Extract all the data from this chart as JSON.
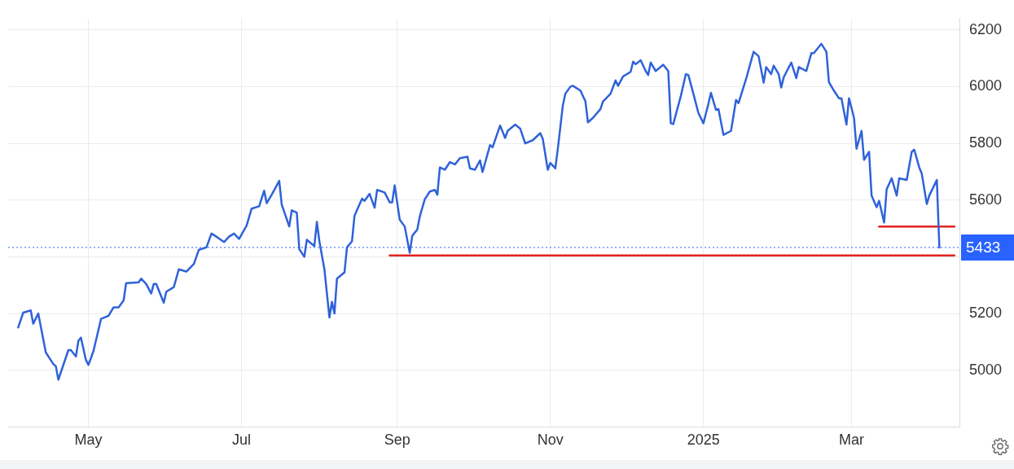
{
  "chart_data": {
    "type": "line",
    "xlim": [
      "2024-03-30",
      "2025-04-13"
    ],
    "xticks": [
      {
        "value": "2024-05-01",
        "label": "May"
      },
      {
        "value": "2024-07-01",
        "label": "Jul"
      },
      {
        "value": "2024-09-01",
        "label": "Sep"
      },
      {
        "value": "2024-11-01",
        "label": "Nov"
      },
      {
        "value": "2025-01-01",
        "label": "2025"
      },
      {
        "value": "2025-03-01",
        "label": "Mar"
      }
    ],
    "ylim": [
      4800,
      6240
    ],
    "yticks": [
      5000,
      5200,
      {
        "value": 5400,
        "label": null
      },
      5600,
      5800,
      6000,
      6200
    ],
    "grid": true,
    "marker": "none",
    "legend": false,
    "x": [
      "2024-04-03",
      "2024-04-05",
      "2024-04-08",
      "2024-04-09",
      "2024-04-11",
      "2024-04-14",
      "2024-04-15",
      "2024-04-17",
      "2024-04-18",
      "2024-04-19",
      "2024-04-23",
      "2024-04-24",
      "2024-04-26",
      "2024-04-27",
      "2024-04-28",
      "2024-04-30",
      "2024-05-01",
      "2024-05-03",
      "2024-05-06",
      "2024-05-09",
      "2024-05-11",
      "2024-05-13",
      "2024-05-15",
      "2024-05-16",
      "2024-05-21",
      "2024-05-22",
      "2024-05-24",
      "2024-05-26",
      "2024-05-27",
      "2024-05-28",
      "2024-05-31",
      "2024-06-01",
      "2024-06-04",
      "2024-06-06",
      "2024-06-09",
      "2024-06-12",
      "2024-06-14",
      "2024-06-17",
      "2024-06-19",
      "2024-06-21",
      "2024-06-24",
      "2024-06-26",
      "2024-06-28",
      "2024-06-30",
      "2024-07-03",
      "2024-07-05",
      "2024-07-08",
      "2024-07-10",
      "2024-07-11",
      "2024-07-13",
      "2024-07-16",
      "2024-07-17",
      "2024-07-20",
      "2024-07-21",
      "2024-07-23",
      "2024-07-24",
      "2024-07-26",
      "2024-07-27",
      "2024-07-30",
      "2024-07-31",
      "2024-08-01",
      "2024-08-03",
      "2024-08-05",
      "2024-08-06",
      "2024-08-07",
      "2024-08-08",
      "2024-08-11",
      "2024-08-12",
      "2024-08-14",
      "2024-08-15",
      "2024-08-18",
      "2024-08-19",
      "2024-08-21",
      "2024-08-23",
      "2024-08-24",
      "2024-08-27",
      "2024-08-29",
      "2024-08-30",
      "2024-08-31",
      "2024-09-02",
      "2024-09-04",
      "2024-09-06",
      "2024-09-07",
      "2024-09-09",
      "2024-09-10",
      "2024-09-12",
      "2024-09-14",
      "2024-09-16",
      "2024-09-17",
      "2024-09-18",
      "2024-09-20",
      "2024-09-22",
      "2024-09-24",
      "2024-09-26",
      "2024-09-29",
      "2024-09-30",
      "2024-10-02",
      "2024-10-04",
      "2024-10-05",
      "2024-10-08",
      "2024-10-09",
      "2024-10-12",
      "2024-10-14",
      "2024-10-15",
      "2024-10-18",
      "2024-10-20",
      "2024-10-22",
      "2024-10-25",
      "2024-10-28",
      "2024-10-29",
      "2024-10-31",
      "2024-11-01",
      "2024-11-03",
      "2024-11-04",
      "2024-11-06",
      "2024-11-07",
      "2024-11-09",
      "2024-11-10",
      "2024-11-13",
      "2024-11-15",
      "2024-11-16",
      "2024-11-18",
      "2024-11-21",
      "2024-11-22",
      "2024-11-25",
      "2024-11-27",
      "2024-11-28",
      "2024-11-30",
      "2024-12-03",
      "2024-12-04",
      "2024-12-05",
      "2024-12-07",
      "2024-12-09",
      "2024-12-10",
      "2024-12-11",
      "2024-12-13",
      "2024-12-16",
      "2024-12-18",
      "2024-12-19",
      "2024-12-20",
      "2024-12-23",
      "2024-12-25",
      "2024-12-26",
      "2024-12-28",
      "2024-12-30",
      "2025-01-01",
      "2025-01-03",
      "2025-01-04",
      "2025-01-06",
      "2025-01-07",
      "2025-01-09",
      "2025-01-12",
      "2025-01-14",
      "2025-01-15",
      "2025-01-18",
      "2025-01-21",
      "2025-01-23",
      "2025-01-25",
      "2025-01-26",
      "2025-01-28",
      "2025-01-29",
      "2025-01-31",
      "2025-02-01",
      "2025-02-02",
      "2025-02-05",
      "2025-02-07",
      "2025-02-08",
      "2025-02-11",
      "2025-02-13",
      "2025-02-14",
      "2025-02-17",
      "2025-02-19",
      "2025-02-20",
      "2025-02-22",
      "2025-02-24",
      "2025-02-25",
      "2025-02-27",
      "2025-02-28",
      "2025-03-02",
      "2025-03-03",
      "2025-03-05",
      "2025-03-06",
      "2025-03-08",
      "2025-03-09",
      "2025-03-11",
      "2025-03-12",
      "2025-03-14",
      "2025-03-15",
      "2025-03-17",
      "2025-03-19",
      "2025-03-20",
      "2025-03-23",
      "2025-03-25",
      "2025-03-26",
      "2025-03-28",
      "2025-03-29",
      "2025-03-31",
      "2025-04-01",
      "2025-04-04",
      "2025-04-05"
    ],
    "series": [
      {
        "color": "#2f62d9",
        "values": [
          5151,
          5203,
          5211,
          5164,
          5200,
          5063,
          5049,
          5022,
          5014,
          4967,
          5071,
          5071,
          5049,
          5104,
          5115,
          5036,
          5019,
          5068,
          5181,
          5192,
          5222,
          5222,
          5246,
          5307,
          5310,
          5323,
          5304,
          5271,
          5304,
          5304,
          5238,
          5277,
          5293,
          5356,
          5348,
          5375,
          5425,
          5433,
          5482,
          5471,
          5452,
          5471,
          5482,
          5463,
          5510,
          5570,
          5578,
          5633,
          5589,
          5619,
          5668,
          5584,
          5507,
          5564,
          5556,
          5427,
          5400,
          5460,
          5438,
          5523,
          5455,
          5356,
          5186,
          5241,
          5200,
          5323,
          5345,
          5433,
          5455,
          5545,
          5605,
          5597,
          5622,
          5573,
          5636,
          5627,
          5592,
          5592,
          5652,
          5531,
          5507,
          5414,
          5474,
          5496,
          5542,
          5603,
          5630,
          5636,
          5619,
          5715,
          5707,
          5734,
          5726,
          5748,
          5753,
          5712,
          5707,
          5740,
          5699,
          5794,
          5786,
          5863,
          5819,
          5844,
          5866,
          5852,
          5800,
          5811,
          5836,
          5816,
          5707,
          5731,
          5712,
          5781,
          5934,
          5975,
          6000,
          6003,
          5986,
          5948,
          5874,
          5890,
          5921,
          5948,
          5975,
          6022,
          6003,
          6036,
          6052,
          6088,
          6079,
          6093,
          6055,
          6041,
          6085,
          6055,
          6077,
          6055,
          5871,
          5868,
          5967,
          6044,
          6041,
          5975,
          5907,
          5871,
          5940,
          5978,
          5918,
          5921,
          5830,
          5844,
          5953,
          5942,
          6027,
          6123,
          6107,
          6014,
          6069,
          6044,
          6074,
          6044,
          5997,
          6033,
          6085,
          6030,
          6069,
          6055,
          6118,
          6118,
          6151,
          6123,
          6016,
          5986,
          5959,
          5959,
          5866,
          5959,
          5890,
          5781,
          5844,
          5742,
          5770,
          5616,
          5575,
          5597,
          5521,
          5638,
          5677,
          5616,
          5677,
          5671,
          5770,
          5778,
          5715,
          5693,
          5586,
          5616,
          5671,
          5433
        ]
      },
      {
        "type": "line",
        "color": "#e3211f",
        "x": [
          "2024-08-29",
          "2025-04-11"
        ],
        "values": [
          5405,
          5405
        ]
      },
      {
        "type": "line",
        "color": "#e3211f",
        "x": [
          "2025-03-12",
          "2025-04-11"
        ],
        "values": [
          5507,
          5507
        ]
      }
    ],
    "ref_lines": [
      {
        "axis": "y",
        "value": 5433,
        "label": "5433",
        "color": "#2962ff",
        "line_style": "dotted"
      }
    ]
  }
}
